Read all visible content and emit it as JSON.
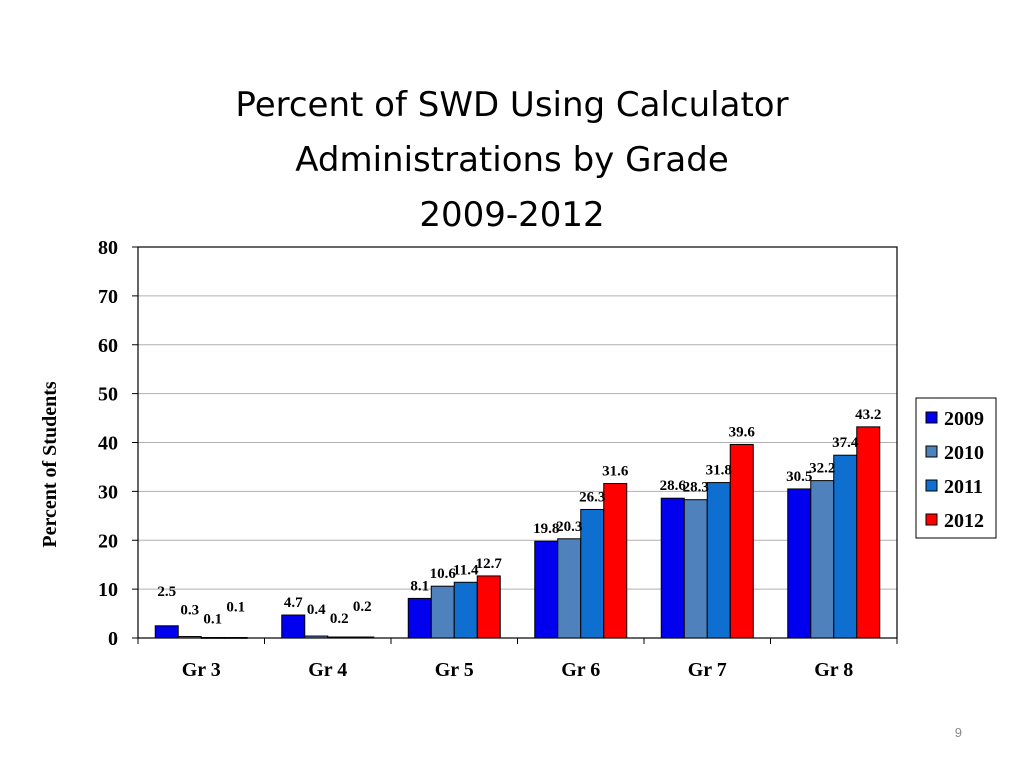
{
  "slide": {
    "title_lines": [
      "Percent of SWD Using Calculator",
      "Administrations by Grade",
      "2009-2012"
    ],
    "page_number": "9"
  },
  "chart_data": {
    "type": "bar",
    "title": "Percent of SWD Using Calculator Administrations by Grade 2009-2012",
    "ylabel": "Percent of Students",
    "xlabel": "",
    "ylim": [
      0,
      80
    ],
    "yticks": [
      0,
      10,
      20,
      30,
      40,
      50,
      60,
      70,
      80
    ],
    "grid": true,
    "legend_position": "right",
    "categories": [
      "Gr 3",
      "Gr 4",
      "Gr 5",
      "Gr 6",
      "Gr 7",
      "Gr 8"
    ],
    "series": [
      {
        "name": "2009",
        "color": "#0000ee",
        "values": [
          2.5,
          4.7,
          8.1,
          19.8,
          28.6,
          30.5
        ]
      },
      {
        "name": "2010",
        "color": "#4f81bd",
        "values": [
          0.3,
          0.4,
          10.6,
          20.3,
          28.3,
          32.2
        ]
      },
      {
        "name": "2011",
        "color": "#0f6fd0",
        "values": [
          0.1,
          0.2,
          11.4,
          26.3,
          31.8,
          37.4
        ]
      },
      {
        "name": "2012",
        "color": "#ff0000",
        "values": [
          0.1,
          0.2,
          12.7,
          31.6,
          39.6,
          43.2
        ]
      }
    ],
    "data_labels": [
      [
        "2.5",
        "4.7",
        "8.1",
        "19.8",
        "28.6",
        "30.5"
      ],
      [
        "0.3",
        "0.4",
        "10.6",
        "20.3",
        "28.3",
        "32.2"
      ],
      [
        "0.1",
        "0.2",
        "11.4",
        "26.3",
        "31.8",
        "37.4"
      ],
      [
        "0.1",
        "0.2",
        "12.7",
        "31.6",
        "39.6",
        "43.2"
      ]
    ]
  }
}
